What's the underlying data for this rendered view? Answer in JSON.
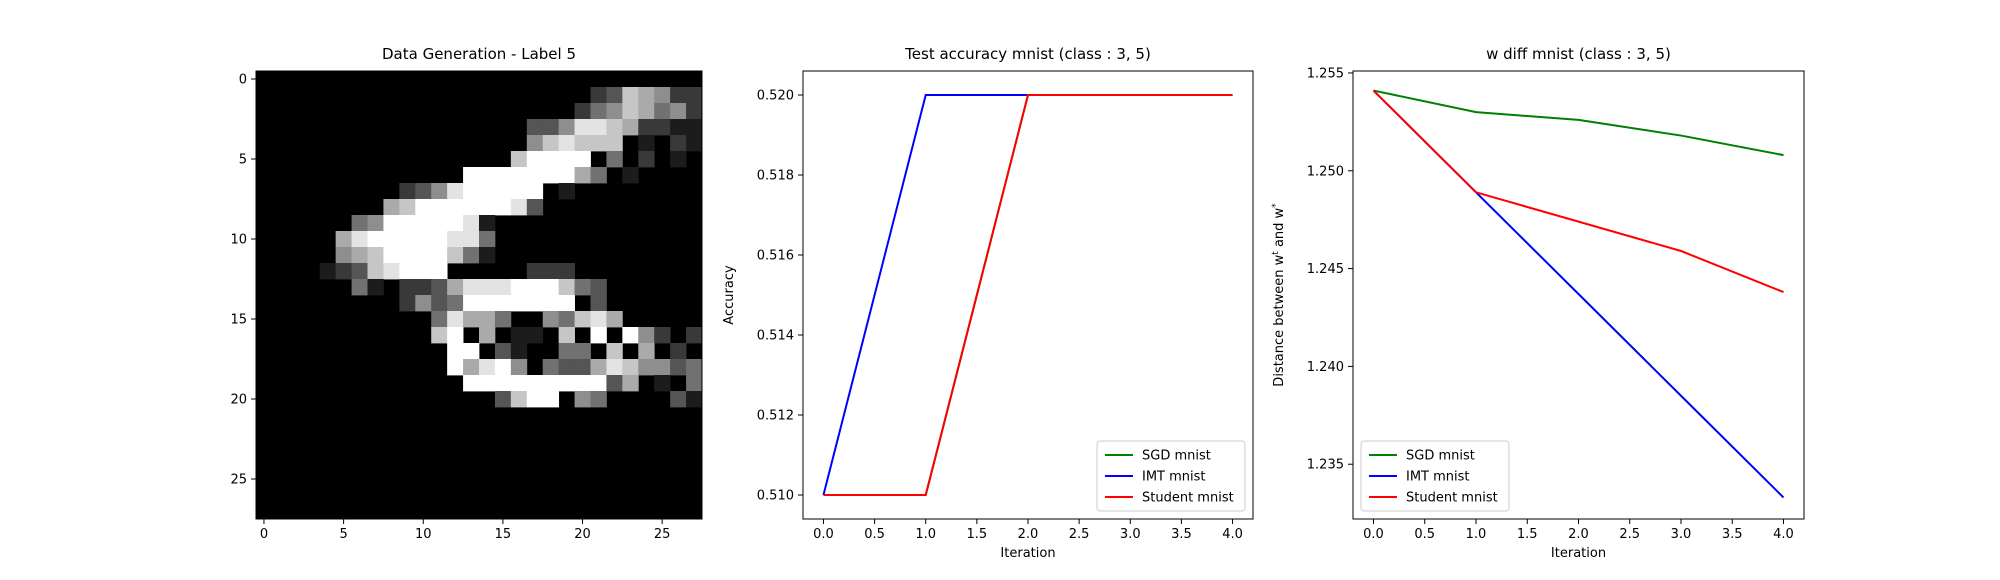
{
  "chart_data": [
    {
      "type": "heatmap",
      "title": "Data Generation - Label 5",
      "xlabel": "",
      "ylabel": "",
      "colormap": "gray",
      "xlim": [
        -0.5,
        27.5
      ],
      "ylim": [
        27.5,
        -0.5
      ],
      "xticks": [
        "0",
        "5",
        "10",
        "15",
        "20",
        "25"
      ],
      "yticks": [
        "0",
        "5",
        "10",
        "15",
        "20",
        "25"
      ],
      "rows": [
        "..............................",
        ".....................2376522...",
        "....................245764522.",
        ".................33588762211..",
        ".................578777.1.21..",
        "................79999.4.2.1...",
        ".............999999964.1......",
        ".........235899999.1..........",
        "........6799999983............",
        "......459999981...............",
        ".....6899999884...............",
        ".....5679999741...............",
        "....12378999.....222..........",
        "......41.2236888999743.........",
        ".........25349999999.3........",
        "...........48664..54786.........",
        "...........79.6.11.7.9.952.2...",
        "............99.31..44.7.6.2.3..",
        "............96895.4336875534.6.",
        ".............99999999936.1.4.84",
        "...............3799.54....31.76",
        "............................2.54",
        "............................2.1.",
        "................................",
        "............................1.1.",
        "................................",
        "................................",
        "................................"
      ]
    },
    {
      "type": "line",
      "title": "Test accuracy mnist (class : 3, 5)",
      "xlabel": "Iteration",
      "ylabel": "Accuracy",
      "xlim": [
        -0.2,
        4.2
      ],
      "ylim": [
        0.5094,
        0.5206
      ],
      "xticks": [
        "0.0",
        "0.5",
        "1.0",
        "1.5",
        "2.0",
        "2.5",
        "3.0",
        "3.5",
        "4.0"
      ],
      "yticks": [
        "0.510",
        "0.512",
        "0.514",
        "0.516",
        "0.518",
        "0.520"
      ],
      "legend": "lower-right",
      "x": [
        0,
        1,
        2,
        3,
        4
      ],
      "series": [
        {
          "name": "SGD mnist",
          "color": "#008000",
          "values": [
            0.51,
            0.51,
            0.52,
            0.52,
            0.52
          ]
        },
        {
          "name": "IMT mnist",
          "color": "#0000ff",
          "values": [
            0.51,
            0.52,
            0.52,
            0.52,
            0.52
          ]
        },
        {
          "name": "Student mnist",
          "color": "#ff0000",
          "values": [
            0.51,
            0.51,
            0.52,
            0.52,
            0.52
          ]
        }
      ]
    },
    {
      "type": "line",
      "title": "w diff mnist (class : 3, 5)",
      "xlabel": "Iteration",
      "ylabel": "Distance between w^t and w^*",
      "xlim": [
        -0.2,
        4.2
      ],
      "ylim": [
        1.2322,
        1.2551
      ],
      "xticks": [
        "0.0",
        "0.5",
        "1.0",
        "1.5",
        "2.0",
        "2.5",
        "3.0",
        "3.5",
        "4.0"
      ],
      "yticks": [
        "1.235",
        "1.240",
        "1.245",
        "1.250",
        "1.255"
      ],
      "legend": "lower-left",
      "x": [
        0,
        1,
        2,
        3,
        4
      ],
      "series": [
        {
          "name": "SGD mnist",
          "color": "#008000",
          "values": [
            1.2541,
            1.253,
            1.2526,
            1.2518,
            1.2508
          ]
        },
        {
          "name": "IMT mnist",
          "color": "#0000ff",
          "values": [
            1.2541,
            1.2489,
            1.2437,
            1.2385,
            1.2333
          ]
        },
        {
          "name": "Student mnist",
          "color": "#ff0000",
          "values": [
            1.2541,
            1.2489,
            1.2474,
            1.2459,
            1.2438
          ]
        }
      ]
    }
  ]
}
